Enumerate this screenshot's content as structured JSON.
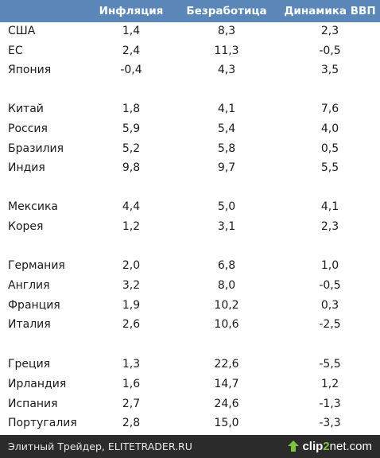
{
  "columns": {
    "inflation": "Инфляция",
    "unemployment": "Безработица",
    "gdp": "Динамика ВВП"
  },
  "rows": [
    {
      "country": "США",
      "inflation": "1,4",
      "unemployment": "8,3",
      "gdp": "2,3"
    },
    {
      "country": "ЕС",
      "inflation": "2,4",
      "unemployment": "11,3",
      "gdp": "-0,5"
    },
    {
      "country": "Япония",
      "inflation": "-0,4",
      "unemployment": "4,3",
      "gdp": "3,5"
    },
    {
      "country": "Китай",
      "inflation": "1,8",
      "unemployment": "4,1",
      "gdp": "7,6"
    },
    {
      "country": "Россия",
      "inflation": "5,9",
      "unemployment": "5,4",
      "gdp": "4,0"
    },
    {
      "country": "Бразилия",
      "inflation": "5,2",
      "unemployment": "5,8",
      "gdp": "0,5"
    },
    {
      "country": "Индия",
      "inflation": "9,8",
      "unemployment": "9,7",
      "gdp": "5,5"
    },
    {
      "country": "Мексика",
      "inflation": "4,4",
      "unemployment": "5,0",
      "gdp": "4,1"
    },
    {
      "country": "Корея",
      "inflation": "1,2",
      "unemployment": "3,1",
      "gdp": "2,3"
    },
    {
      "country": "Германия",
      "inflation": "2,0",
      "unemployment": "6,8",
      "gdp": "1,0"
    },
    {
      "country": "Англия",
      "inflation": "3,2",
      "unemployment": "8,0",
      "gdp": "-0,5"
    },
    {
      "country": "Франция",
      "inflation": "1,9",
      "unemployment": "10,2",
      "gdp": "0,3"
    },
    {
      "country": "Италия",
      "inflation": "2,6",
      "unemployment": "10,6",
      "gdp": "-2,5"
    },
    {
      "country": "Греция",
      "inflation": "1,3",
      "unemployment": "22,6",
      "gdp": "-5,5"
    },
    {
      "country": "Ирландия",
      "inflation": "1,6",
      "unemployment": "14,7",
      "gdp": "1,2"
    },
    {
      "country": "Испания",
      "inflation": "2,7",
      "unemployment": "24,6",
      "gdp": "-1,3"
    },
    {
      "country": "Португалия",
      "inflation": "2,8",
      "unemployment": "15,0",
      "gdp": "-3,3"
    }
  ],
  "footer": {
    "caption": "Элитный Трейдер, ELITETRADER.RU",
    "logo_part1": "clip",
    "logo_part2": "2",
    "logo_part3": "net.com",
    "logo_icon": "arrow-up-icon"
  },
  "colors": {
    "header_bg": "#5a87b7",
    "header_text": "#ffffff",
    "footer_bg": "#2b2b2b",
    "logo_accent": "#7cc242"
  }
}
